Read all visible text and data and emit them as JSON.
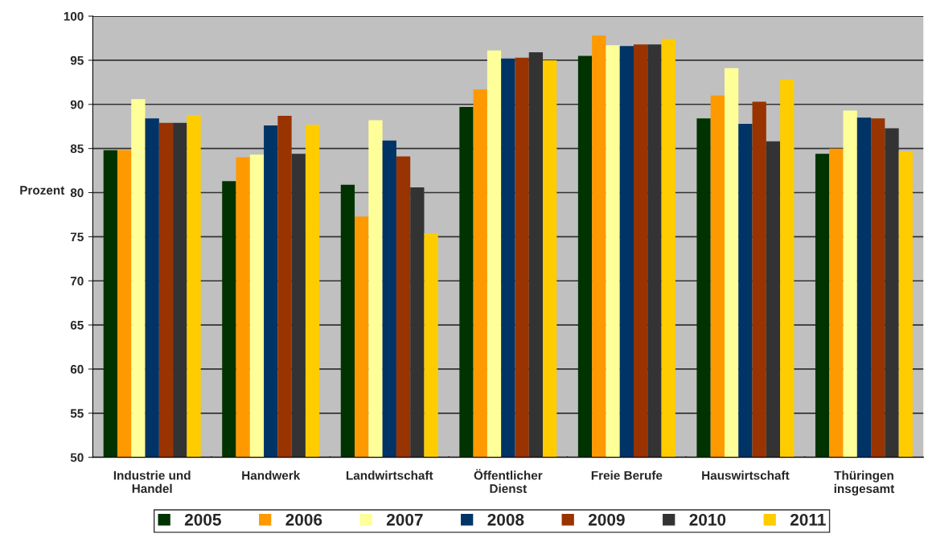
{
  "chart_data": {
    "type": "bar",
    "categories": [
      "Industrie und\nHandel",
      "Handwerk",
      "Landwirtschaft",
      "Öffentlicher\nDienst",
      "Freie Berufe",
      "Hauswirtschaft",
      "Thüringen\ninsgesamt"
    ],
    "ylabel": "Prozent",
    "ylim": [
      50,
      100
    ],
    "yticks": [
      50,
      55,
      60,
      65,
      70,
      75,
      80,
      85,
      90,
      95,
      100
    ],
    "grid": "y",
    "legend": "bottom",
    "series": [
      {
        "name": "2005",
        "color": "#003300",
        "values": [
          84.8,
          81.3,
          80.9,
          89.7,
          95.5,
          88.4,
          84.4
        ]
      },
      {
        "name": "2006",
        "color": "#ff9900",
        "values": [
          84.8,
          84.0,
          77.3,
          91.7,
          97.8,
          91.0,
          85.0
        ]
      },
      {
        "name": "2007",
        "color": "#ffff99",
        "values": [
          90.6,
          84.3,
          88.2,
          96.1,
          96.7,
          94.1,
          89.3
        ]
      },
      {
        "name": "2008",
        "color": "#003366",
        "values": [
          88.4,
          87.6,
          85.9,
          95.2,
          96.6,
          87.8,
          88.5
        ]
      },
      {
        "name": "2009",
        "color": "#993300",
        "values": [
          87.9,
          88.7,
          84.1,
          95.3,
          96.8,
          90.3,
          88.4
        ]
      },
      {
        "name": "2010",
        "color": "#333333",
        "values": [
          87.9,
          84.4,
          80.6,
          95.9,
          96.8,
          85.8,
          87.3
        ]
      },
      {
        "name": "2011",
        "color": "#ffcc00",
        "values": [
          88.8,
          87.7,
          75.4,
          95.0,
          97.4,
          92.8,
          84.7
        ]
      }
    ]
  }
}
